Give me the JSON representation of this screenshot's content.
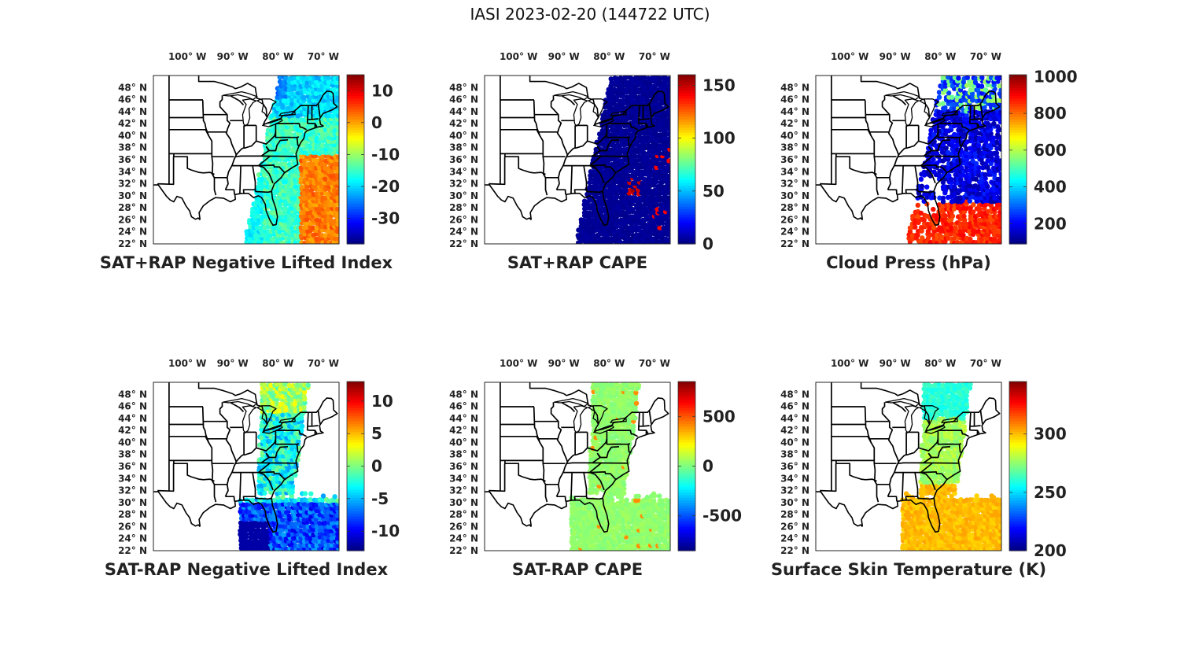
{
  "title": "IASI 2023-02-20 (144722 UTC)",
  "lon_labels": [
    "100° W",
    "90° W",
    "80° W",
    "70° W"
  ],
  "lat_labels": [
    "48° N",
    "46° N",
    "44° N",
    "42° N",
    "40° N",
    "38° N",
    "36° N",
    "34° N",
    "32° N",
    "30° N",
    "28° N",
    "26° N",
    "24° N",
    "22° N"
  ],
  "colormap": "jet",
  "panels": [
    {
      "title": "SAT+RAP Negative Lifted Index",
      "cb_min": -38,
      "cb_max": 15,
      "ticks": [
        "10",
        "0",
        "-10",
        "-20",
        "-30"
      ],
      "tick_values": [
        10,
        0,
        -10,
        -20,
        -30
      ],
      "swath": "east",
      "fill": "li_plus"
    },
    {
      "title": "SAT+RAP CAPE",
      "cb_min": 0,
      "cb_max": 160,
      "ticks": [
        "150",
        "100",
        "50",
        "0"
      ],
      "tick_values": [
        150,
        100,
        50,
        0
      ],
      "swath": "east",
      "fill": "cape_plus"
    },
    {
      "title": "Cloud Press (hPa)",
      "cb_min": 90,
      "cb_max": 1010,
      "ticks": [
        "1000",
        "800",
        "600",
        "400",
        "200"
      ],
      "tick_values": [
        1000,
        800,
        600,
        400,
        200
      ],
      "swath": "east",
      "fill": "cloud"
    },
    {
      "title": "SAT-RAP Negative Lifted Index",
      "cb_min": -13,
      "cb_max": 13,
      "ticks": [
        "10",
        "5",
        "0",
        "-5",
        "-10"
      ],
      "tick_values": [
        10,
        5,
        0,
        -5,
        -10
      ],
      "swath": "north_south",
      "fill": "li_minus"
    },
    {
      "title": "SAT-RAP CAPE",
      "cb_min": -850,
      "cb_max": 850,
      "ticks": [
        "500",
        "0",
        "-500"
      ],
      "tick_values": [
        500,
        0,
        -500
      ],
      "swath": "north_south",
      "fill": "cape_minus"
    },
    {
      "title": "Surface Skin Temperature (K)",
      "cb_min": 200,
      "cb_max": 345,
      "ticks": [
        "300",
        "250",
        "200"
      ],
      "tick_values": [
        300,
        250,
        200
      ],
      "swath": "north_south",
      "fill": "skin"
    }
  ]
}
